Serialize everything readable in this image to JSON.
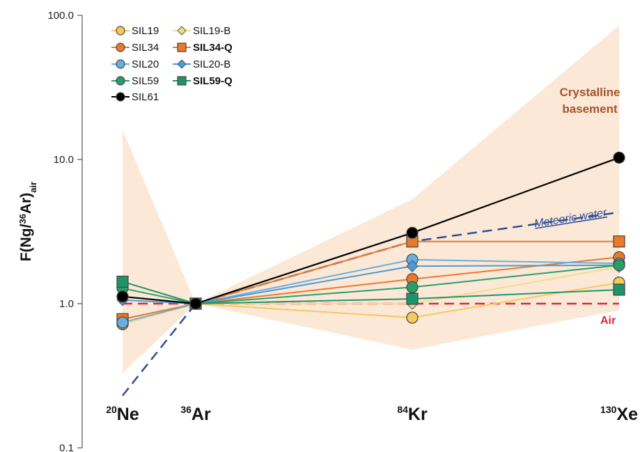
{
  "chart_data": {
    "type": "line",
    "yscale": "log",
    "ylim": [
      0.1,
      100
    ],
    "ylabel": {
      "main": "F(Ng/",
      "sup": "36",
      "mid": "Ar)",
      "sub": "air"
    },
    "y_ticks": [
      "100.0",
      "10.0",
      "1.0",
      "0.1"
    ],
    "categories": [
      {
        "sup": "20",
        "base": "Ne"
      },
      {
        "sup": "36",
        "base": "Ar"
      },
      {
        "sup": "84",
        "base": "Kr"
      },
      {
        "sup": "130",
        "base": "Xe"
      }
    ],
    "series": [
      {
        "name": "SIL19",
        "color": "#f6c95c",
        "marker": "circle",
        "values": [
          0.72,
          1.0,
          0.8,
          1.4
        ]
      },
      {
        "name": "SIL19-B",
        "color": "#f3dc8c",
        "marker": "diamond",
        "values": [
          0.72,
          1.0,
          1.0,
          1.8
        ]
      },
      {
        "name": "SIL34",
        "color": "#e87a2c",
        "marker": "circle",
        "values": [
          0.78,
          1.0,
          1.48,
          2.1
        ]
      },
      {
        "name": "SIL34-Q",
        "color": "#e87a2c",
        "marker": "square",
        "bold": true,
        "values": [
          0.78,
          1.0,
          2.7,
          2.7
        ]
      },
      {
        "name": "SIL20",
        "color": "#6aaee0",
        "marker": "circle",
        "values": [
          0.74,
          1.0,
          2.02,
          1.9
        ]
      },
      {
        "name": "SIL20-B",
        "color": "#4b9bd8",
        "marker": "diamond",
        "values": [
          1.06,
          1.0,
          1.82,
          1.85
        ]
      },
      {
        "name": "SIL59",
        "color": "#2a9e6a",
        "marker": "circle",
        "values": [
          1.28,
          1.0,
          1.3,
          1.85
        ]
      },
      {
        "name": "SIL59-Q",
        "color": "#1f9468",
        "marker": "square",
        "bold": true,
        "values": [
          1.42,
          1.0,
          1.08,
          1.25
        ]
      },
      {
        "name": "SIL61",
        "color": "#000000",
        "marker": "circle",
        "values": [
          1.12,
          1.0,
          3.1,
          10.3
        ]
      }
    ],
    "reference_lines": [
      {
        "label": "Meteoric water",
        "color": "#2e4e96",
        "style": "dashed",
        "values": [
          0.23,
          1.0,
          2.7,
          4.3
        ]
      },
      {
        "label": "Air",
        "color": "#d62a3a",
        "style": "dashed",
        "values": [
          1.0,
          1.0,
          1.0,
          1.0
        ]
      }
    ],
    "band": {
      "label_lines": [
        "Crystalline",
        "basement"
      ],
      "color": "#fbe8d6",
      "label_color": "#a4542a",
      "upper": [
        16,
        1.0,
        5.3,
        85
      ],
      "lower": [
        0.33,
        1.0,
        0.48,
        0.9
      ]
    },
    "grid": false,
    "legend_position": "top-left"
  }
}
